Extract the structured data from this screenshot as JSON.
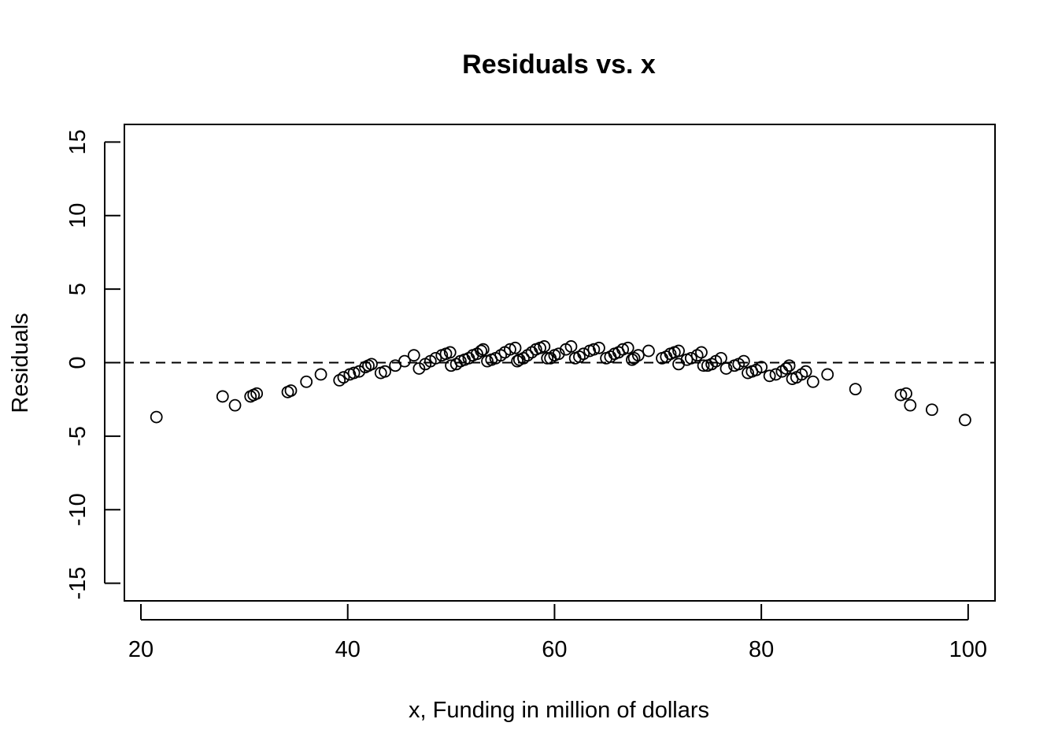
{
  "chart_data": {
    "type": "scatter",
    "title": "Residuals vs. x",
    "xlabel": "x, Funding in million of dollars",
    "ylabel": "Residuals",
    "xlim": [
      18.4,
      102.6
    ],
    "ylim": [
      -16.2,
      16.2
    ],
    "x_ticks": [
      20,
      40,
      60,
      80,
      100
    ],
    "y_ticks": [
      -15,
      -10,
      -5,
      0,
      5,
      10,
      15
    ],
    "reference_line": {
      "y": 0,
      "style": "dashed"
    },
    "marker": "open-circle",
    "grid": false,
    "points": [
      [
        21.5,
        -3.7
      ],
      [
        27.9,
        -2.3
      ],
      [
        29.1,
        -2.9
      ],
      [
        30.6,
        -2.3
      ],
      [
        30.9,
        -2.2
      ],
      [
        31.2,
        -2.1
      ],
      [
        34.2,
        -2.0
      ],
      [
        34.5,
        -1.9
      ],
      [
        36.0,
        -1.3
      ],
      [
        37.4,
        -0.8
      ],
      [
        39.2,
        -1.2
      ],
      [
        39.6,
        -1.0
      ],
      [
        40.2,
        -0.8
      ],
      [
        40.6,
        -0.7
      ],
      [
        41.1,
        -0.6
      ],
      [
        41.7,
        -0.3
      ],
      [
        42.0,
        -0.2
      ],
      [
        42.3,
        -0.1
      ],
      [
        43.2,
        -0.7
      ],
      [
        43.6,
        -0.6
      ],
      [
        44.6,
        -0.2
      ],
      [
        45.5,
        0.1
      ],
      [
        46.4,
        0.5
      ],
      [
        46.9,
        -0.4
      ],
      [
        47.5,
        -0.1
      ],
      [
        48.0,
        0.1
      ],
      [
        48.5,
        0.3
      ],
      [
        49.1,
        0.5
      ],
      [
        49.5,
        0.6
      ],
      [
        49.9,
        0.7
      ],
      [
        50.0,
        -0.2
      ],
      [
        50.5,
        -0.1
      ],
      [
        50.9,
        0.1
      ],
      [
        51.3,
        0.2
      ],
      [
        51.7,
        0.3
      ],
      [
        52.1,
        0.5
      ],
      [
        52.5,
        0.6
      ],
      [
        52.9,
        0.8
      ],
      [
        53.1,
        0.9
      ],
      [
        53.5,
        0.1
      ],
      [
        53.9,
        0.2
      ],
      [
        54.3,
        0.3
      ],
      [
        54.8,
        0.5
      ],
      [
        55.2,
        0.7
      ],
      [
        55.7,
        0.9
      ],
      [
        56.2,
        1.0
      ],
      [
        56.4,
        0.1
      ],
      [
        56.6,
        0.2
      ],
      [
        57.0,
        0.3
      ],
      [
        57.4,
        0.5
      ],
      [
        57.8,
        0.7
      ],
      [
        58.2,
        0.9
      ],
      [
        58.6,
        1.0
      ],
      [
        59.0,
        1.1
      ],
      [
        59.3,
        0.3
      ],
      [
        59.6,
        0.3
      ],
      [
        60.0,
        0.5
      ],
      [
        60.4,
        0.6
      ],
      [
        61.1,
        0.9
      ],
      [
        61.6,
        1.1
      ],
      [
        62.0,
        0.3
      ],
      [
        62.4,
        0.4
      ],
      [
        62.8,
        0.6
      ],
      [
        63.4,
        0.8
      ],
      [
        63.8,
        0.9
      ],
      [
        64.3,
        1.0
      ],
      [
        65.0,
        0.3
      ],
      [
        65.4,
        0.4
      ],
      [
        65.8,
        0.6
      ],
      [
        66.2,
        0.7
      ],
      [
        66.6,
        0.9
      ],
      [
        67.1,
        1.0
      ],
      [
        67.5,
        0.2
      ],
      [
        67.7,
        0.3
      ],
      [
        68.1,
        0.5
      ],
      [
        69.1,
        0.8
      ],
      [
        70.4,
        0.3
      ],
      [
        70.8,
        0.4
      ],
      [
        71.2,
        0.6
      ],
      [
        71.6,
        0.7
      ],
      [
        72.0,
        0.8
      ],
      [
        72.0,
        -0.1
      ],
      [
        72.8,
        0.2
      ],
      [
        73.2,
        0.3
      ],
      [
        73.8,
        0.5
      ],
      [
        74.2,
        0.7
      ],
      [
        74.4,
        -0.2
      ],
      [
        74.8,
        -0.2
      ],
      [
        75.2,
        -0.1
      ],
      [
        75.6,
        0.1
      ],
      [
        76.1,
        0.3
      ],
      [
        76.6,
        -0.4
      ],
      [
        77.4,
        -0.2
      ],
      [
        77.8,
        -0.1
      ],
      [
        78.3,
        0.1
      ],
      [
        78.7,
        -0.7
      ],
      [
        79.1,
        -0.6
      ],
      [
        79.5,
        -0.5
      ],
      [
        80.0,
        -0.3
      ],
      [
        80.8,
        -0.9
      ],
      [
        81.4,
        -0.8
      ],
      [
        82.0,
        -0.6
      ],
      [
        82.4,
        -0.4
      ],
      [
        82.7,
        -0.2
      ],
      [
        83.0,
        -1.1
      ],
      [
        83.4,
        -1.0
      ],
      [
        83.9,
        -0.8
      ],
      [
        84.3,
        -0.6
      ],
      [
        85.0,
        -1.3
      ],
      [
        86.4,
        -0.8
      ],
      [
        89.1,
        -1.8
      ],
      [
        93.5,
        -2.2
      ],
      [
        94.0,
        -2.1
      ],
      [
        94.4,
        -2.9
      ],
      [
        96.5,
        -3.2
      ],
      [
        99.7,
        -3.9
      ]
    ]
  }
}
